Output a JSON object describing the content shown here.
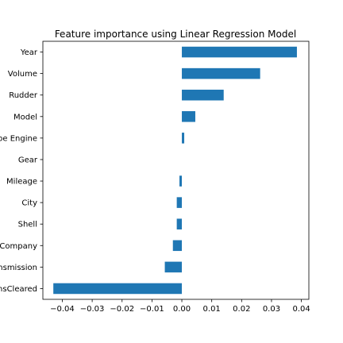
{
  "chart_data": {
    "type": "bar",
    "orientation": "horizontal",
    "title": "Feature importance using Linear Regression Model",
    "xlabel": "",
    "ylabel": "",
    "categories": [
      "Year",
      "Volume",
      "Rudder",
      "Model",
      "pe Engine",
      "Gear",
      "Mileage",
      "City",
      "Shell",
      "Company",
      "nsmission",
      "nsCleared"
    ],
    "values": [
      0.0385,
      0.0262,
      0.014,
      0.0045,
      0.0008,
      0.0,
      -0.0008,
      -0.0017,
      -0.0017,
      -0.003,
      -0.0057,
      -0.043
    ],
    "xlim": [
      -0.0465,
      0.0425
    ],
    "xticks": [
      -0.04,
      -0.03,
      -0.02,
      -0.01,
      0.0,
      0.01,
      0.02,
      0.03,
      0.04
    ],
    "xtick_labels": [
      "−0.04",
      "−0.03",
      "−0.02",
      "−0.01",
      "0.00",
      "0.01",
      "0.02",
      "0.03",
      "0.04"
    ],
    "grid": false,
    "legend": "none",
    "bar_color": "#1f77b4"
  }
}
